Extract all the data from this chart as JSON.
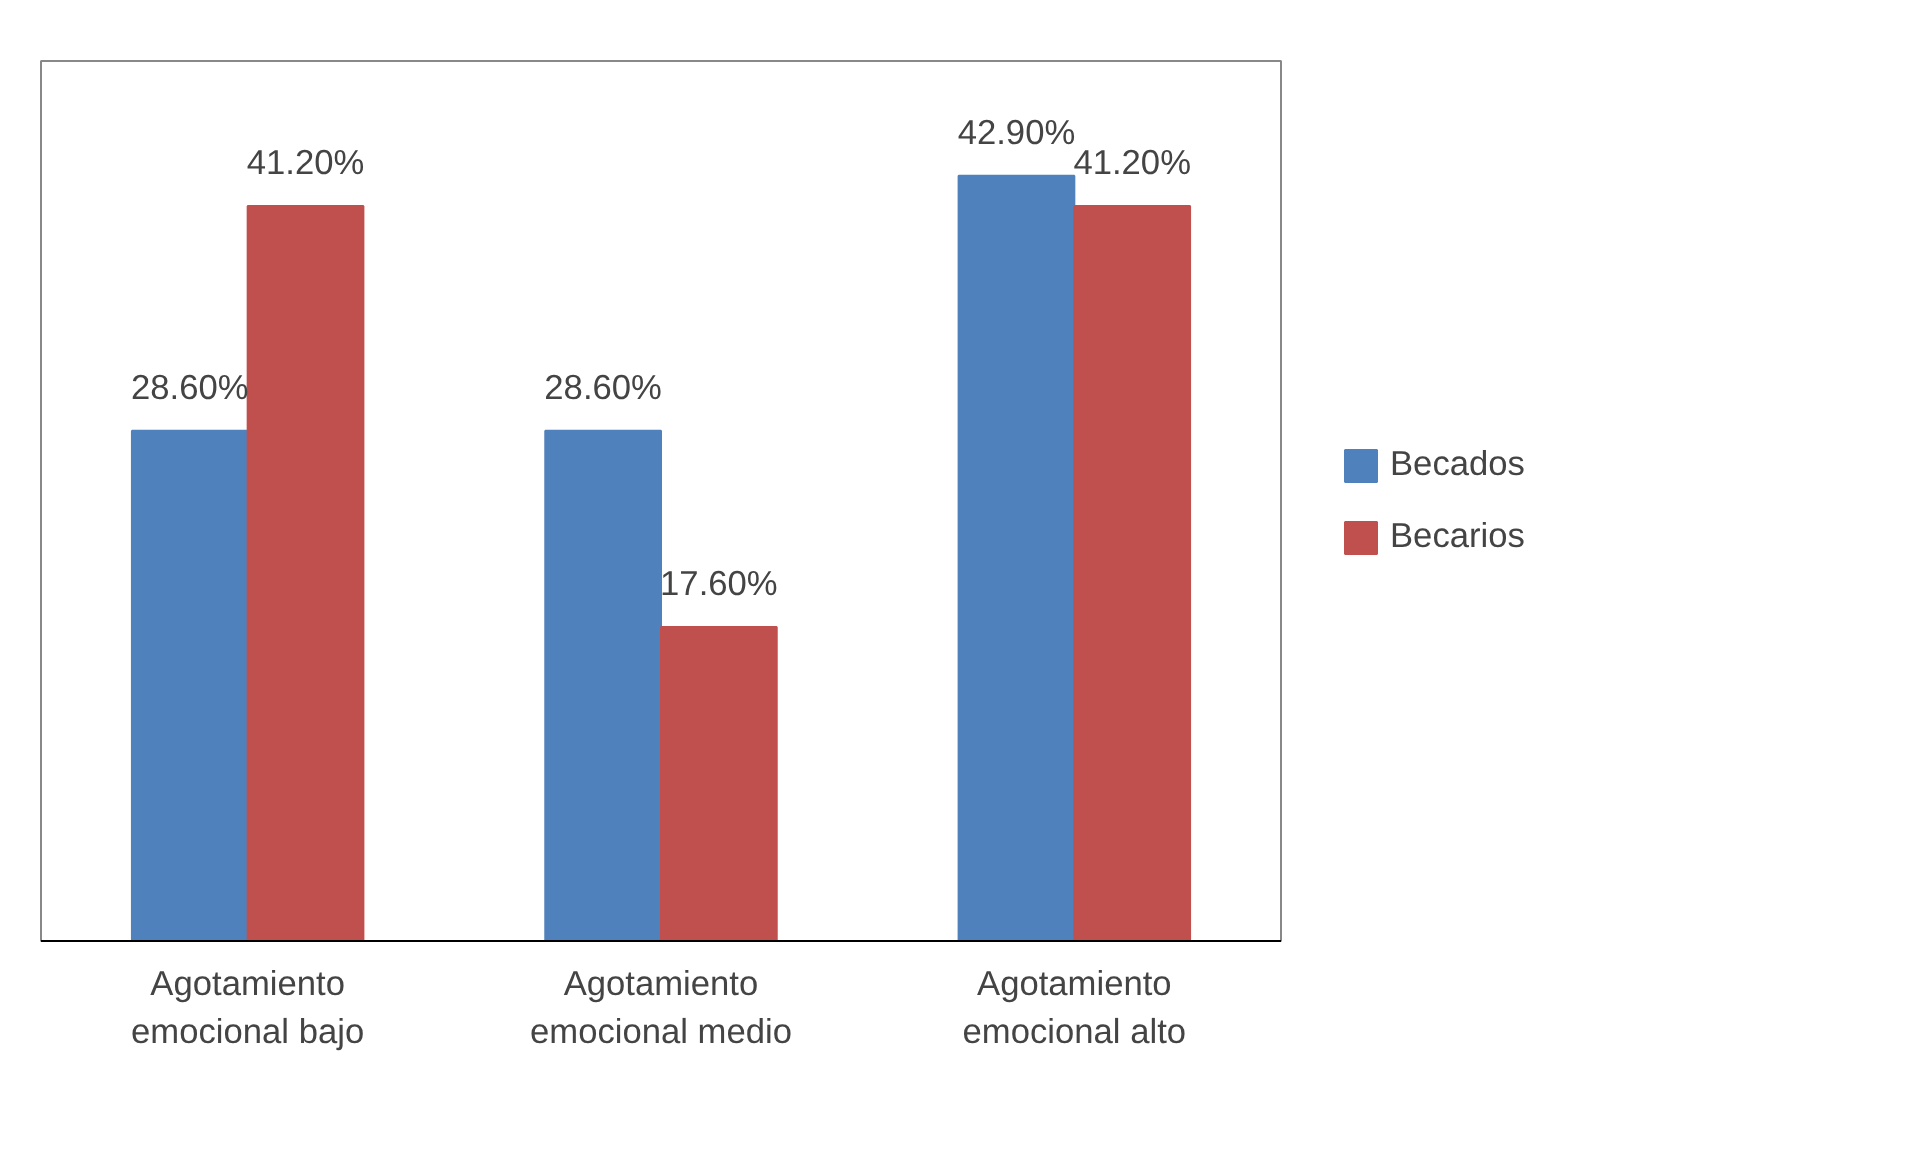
{
  "chart_data": {
    "type": "bar",
    "categories": [
      "Agotamiento\nemocional bajo",
      "Agotamiento\nemocional medio",
      "Agotamiento\nemocional alto"
    ],
    "series": [
      {
        "name": "Becados",
        "color": "#4f81bd",
        "values": [
          28.6,
          28.6,
          42.9
        ],
        "value_labels": [
          "28.60%",
          "28.60%",
          "42.90%"
        ]
      },
      {
        "name": "Becarios",
        "color": "#c0504d",
        "values": [
          41.2,
          17.6,
          41.2
        ],
        "value_labels": [
          "41.20%",
          "17.60%",
          "41.20%"
        ]
      }
    ],
    "legend": "right",
    "grid": false,
    "tick_labels": "x"
  }
}
